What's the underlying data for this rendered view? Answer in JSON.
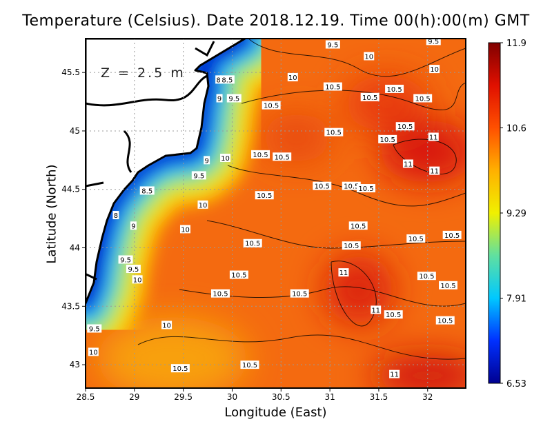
{
  "title": "Temperature (Celsius). Date 2018.12.19. Time 00(h):00(m) GMT",
  "depth_label": "Z = 2.5 m",
  "x_axis": {
    "label": "Longitude (East)",
    "ticks": [
      "28.5",
      "29",
      "29.5",
      "30",
      "30.5",
      "31",
      "31.5",
      "32"
    ],
    "range": [
      28.5,
      32.39
    ]
  },
  "y_axis": {
    "label": "Latitude (North)",
    "ticks": [
      "43",
      "43.5",
      "44",
      "44.5",
      "45",
      "45.5"
    ],
    "range": [
      42.8,
      45.79
    ]
  },
  "colorbar": {
    "labels": [
      "11.9",
      "10.6",
      "9.29",
      "7.91",
      "6.53"
    ],
    "min": 6.53,
    "max": 11.9,
    "colors": [
      "#000090",
      "#0030ff",
      "#00c8ff",
      "#60e0a0",
      "#f0f000",
      "#ffb000",
      "#ff5000",
      "#e01000",
      "#800000"
    ]
  },
  "land_color": "#ffffff",
  "contour_labels": [
    {
      "t": "9.5",
      "lon": 31.03,
      "lat": 45.74
    },
    {
      "t": "10",
      "lon": 31.4,
      "lat": 45.64
    },
    {
      "t": "9.5",
      "lon": 32.06,
      "lat": 45.77
    },
    {
      "t": "10",
      "lon": 32.07,
      "lat": 45.53
    },
    {
      "t": "10",
      "lon": 30.62,
      "lat": 45.46
    },
    {
      "t": "10.5",
      "lon": 31.03,
      "lat": 45.38
    },
    {
      "t": "10.5",
      "lon": 31.41,
      "lat": 45.29
    },
    {
      "t": "10.5",
      "lon": 31.66,
      "lat": 45.36
    },
    {
      "t": "10.5",
      "lon": 31.95,
      "lat": 45.28
    },
    {
      "t": "10.5",
      "lon": 30.4,
      "lat": 45.22
    },
    {
      "t": "10.5",
      "lon": 31.77,
      "lat": 45.04
    },
    {
      "t": "10.5",
      "lon": 31.04,
      "lat": 44.99
    },
    {
      "t": "10.5",
      "lon": 31.59,
      "lat": 44.93
    },
    {
      "t": "11",
      "lon": 32.06,
      "lat": 44.95
    },
    {
      "t": "10.5",
      "lon": 30.29,
      "lat": 44.8
    },
    {
      "t": "10.5",
      "lon": 30.51,
      "lat": 44.78
    },
    {
      "t": "11",
      "lon": 31.8,
      "lat": 44.72
    },
    {
      "t": "11",
      "lon": 32.07,
      "lat": 44.66
    },
    {
      "t": "10",
      "lon": 29.93,
      "lat": 44.77
    },
    {
      "t": "9",
      "lon": 29.74,
      "lat": 44.75
    },
    {
      "t": "9.5",
      "lon": 29.66,
      "lat": 44.62
    },
    {
      "t": "10",
      "lon": 29.7,
      "lat": 44.37
    },
    {
      "t": "8.5",
      "lon": 29.13,
      "lat": 44.49
    },
    {
      "t": "10.5",
      "lon": 30.92,
      "lat": 44.53
    },
    {
      "t": "10.5",
      "lon": 31.22,
      "lat": 44.53
    },
    {
      "t": "10.5",
      "lon": 31.37,
      "lat": 44.51
    },
    {
      "t": "10.5",
      "lon": 30.33,
      "lat": 44.45
    },
    {
      "t": "8",
      "lon": 28.81,
      "lat": 44.28
    },
    {
      "t": "9",
      "lon": 28.99,
      "lat": 44.19
    },
    {
      "t": "10",
      "lon": 29.52,
      "lat": 44.16
    },
    {
      "t": "10.5",
      "lon": 31.29,
      "lat": 44.19
    },
    {
      "t": "10.5",
      "lon": 31.88,
      "lat": 44.08
    },
    {
      "t": "10.5",
      "lon": 32.25,
      "lat": 44.11
    },
    {
      "t": "10.5",
      "lon": 30.21,
      "lat": 44.04
    },
    {
      "t": "10.5",
      "lon": 31.22,
      "lat": 44.02
    },
    {
      "t": "9.5",
      "lon": 28.91,
      "lat": 43.9
    },
    {
      "t": "9.5",
      "lon": 28.99,
      "lat": 43.82
    },
    {
      "t": "10",
      "lon": 29.03,
      "lat": 43.73
    },
    {
      "t": "11",
      "lon": 31.14,
      "lat": 43.79
    },
    {
      "t": "10.5",
      "lon": 30.07,
      "lat": 43.77
    },
    {
      "t": "10.5",
      "lon": 31.99,
      "lat": 43.76
    },
    {
      "t": "10.5",
      "lon": 32.21,
      "lat": 43.68
    },
    {
      "t": "10.5",
      "lon": 29.88,
      "lat": 43.61
    },
    {
      "t": "10.5",
      "lon": 30.69,
      "lat": 43.61
    },
    {
      "t": "11",
      "lon": 31.47,
      "lat": 43.47
    },
    {
      "t": "10.5",
      "lon": 31.65,
      "lat": 43.43
    },
    {
      "t": "10.5",
      "lon": 32.18,
      "lat": 43.38
    },
    {
      "t": "10",
      "lon": 29.33,
      "lat": 43.34
    },
    {
      "t": "9.5",
      "lon": 28.59,
      "lat": 43.31
    },
    {
      "t": "10",
      "lon": 28.58,
      "lat": 43.11
    },
    {
      "t": "10.5",
      "lon": 30.18,
      "lat": 43.0
    },
    {
      "t": "10.5",
      "lon": 29.47,
      "lat": 42.97
    },
    {
      "t": "11",
      "lon": 31.66,
      "lat": 42.92
    },
    {
      "t": "8",
      "lon": 29.86,
      "lat": 45.44
    },
    {
      "t": "8.5",
      "lon": 29.95,
      "lat": 45.44
    },
    {
      "t": "9",
      "lon": 29.87,
      "lat": 45.28
    },
    {
      "t": "9.5",
      "lon": 30.02,
      "lat": 45.28
    }
  ]
}
